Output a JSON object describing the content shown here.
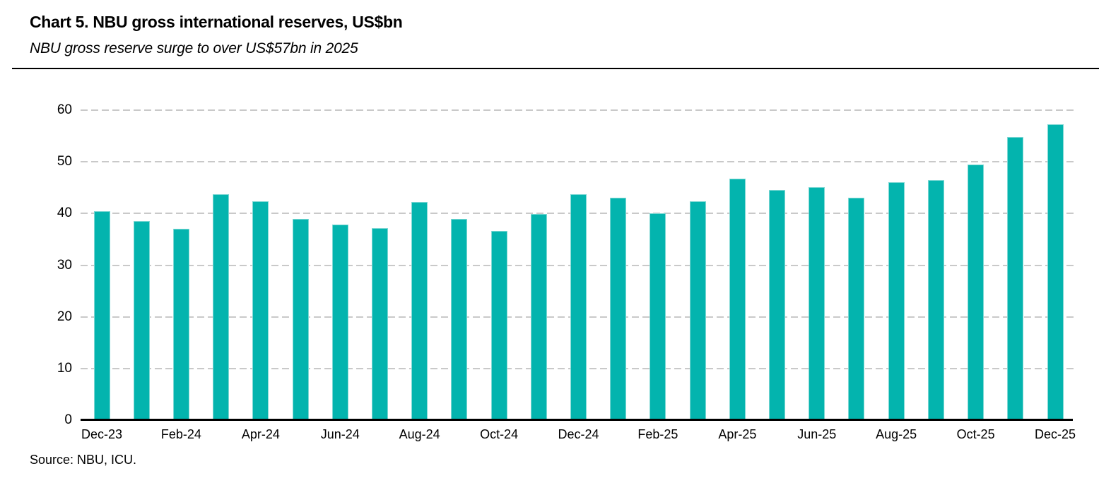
{
  "header": {
    "title": "Chart 5. NBU gross international reserves, US$bn",
    "subtitle": "NBU gross reserve surge to over US$57bn in 2025"
  },
  "footer": {
    "source": "Source: NBU, ICU."
  },
  "chart_data": {
    "type": "bar",
    "title": "Chart 5. NBU gross international reserves, US$bn",
    "subtitle": "NBU gross reserve surge to over US$57bn in 2025",
    "unit": "US$bn",
    "categories": [
      "Dec-23",
      "Jan-24",
      "Feb-24",
      "Mar-24",
      "Apr-24",
      "May-24",
      "Jun-24",
      "Jul-24",
      "Aug-24",
      "Sep-24",
      "Oct-24",
      "Nov-24",
      "Dec-24",
      "Jan-25",
      "Feb-25",
      "Mar-25",
      "Apr-25",
      "May-25",
      "Jun-25",
      "Jul-25",
      "Aug-25",
      "Sep-25",
      "Oct-25",
      "Nov-25",
      "Dec-25"
    ],
    "values": [
      40.5,
      38.5,
      37.0,
      43.8,
      42.4,
      39.0,
      37.9,
      37.2,
      42.3,
      38.9,
      36.6,
      39.9,
      43.8,
      43.0,
      40.1,
      42.4,
      46.7,
      44.5,
      45.1,
      43.0,
      46.0,
      46.5,
      49.5,
      54.8,
      57.3
    ],
    "x_tick_labels": [
      "Dec-23",
      "Feb-24",
      "Apr-24",
      "Jun-24",
      "Aug-24",
      "Oct-24",
      "Dec-24",
      "Feb-25",
      "Apr-25",
      "Jun-25",
      "Aug-25",
      "Oct-25",
      "Dec-25"
    ],
    "x_tick_every": 2,
    "y_ticks": [
      0,
      10,
      20,
      30,
      40,
      50,
      60
    ],
    "ylim": [
      0,
      60
    ],
    "grid": "horizontal-dashed",
    "legend_position": "none",
    "bar_color": "#03b4ae",
    "bar_edge_color": "#7fd8d4",
    "gridline_color": "#c9c9c9",
    "axis_color": "#000000",
    "text_color": "#000000"
  }
}
